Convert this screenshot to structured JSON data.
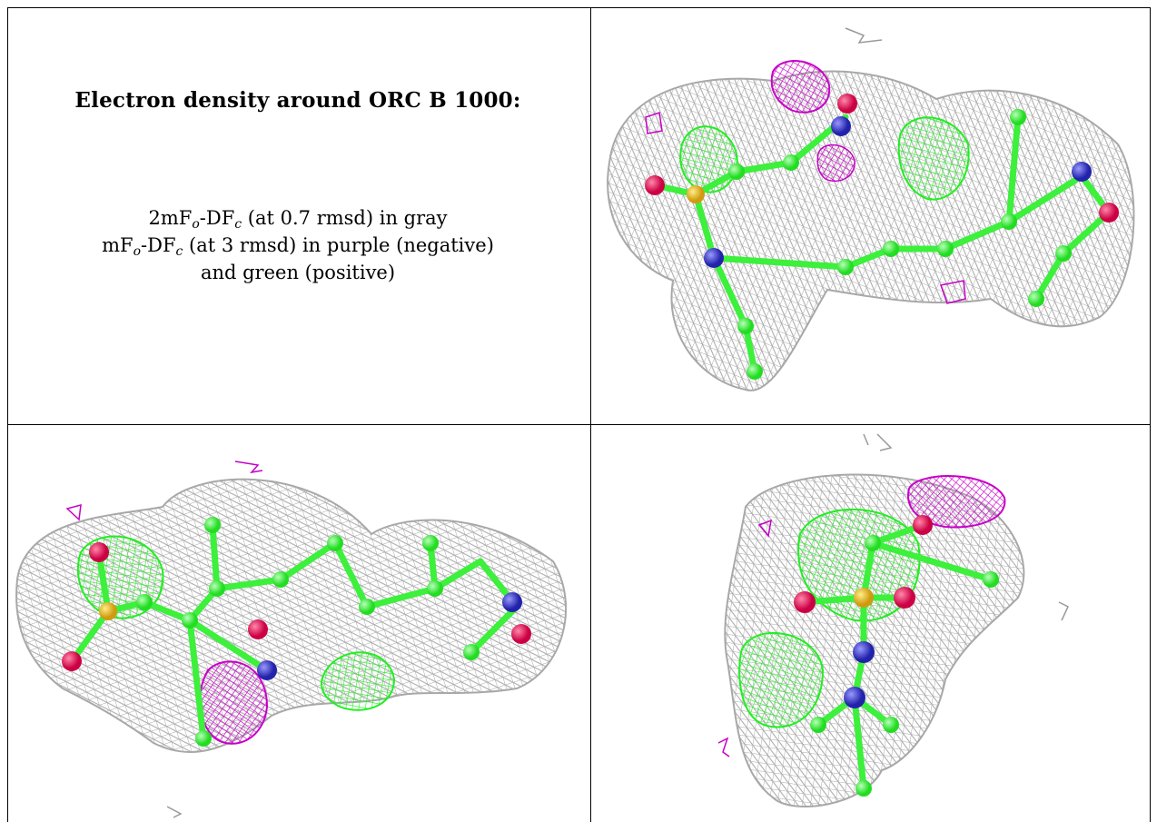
{
  "caption": {
    "title": "Electron density around ORC B 1000:",
    "line1": {
      "pre": "2mF",
      "sub1": "o",
      "mid": "-DF",
      "sub2": "c",
      "post": " (at 0.7 rmsd) in gray"
    },
    "line2": {
      "pre": "mF",
      "sub1": "o",
      "mid": "-DF",
      "sub2": "c",
      "post": " (at 3 rmsd) in purple (negative)"
    },
    "line3": "and green (positive)"
  },
  "colors": {
    "mesh_gray": "#a8a8a8",
    "negative_purple": "#c800c8",
    "positive_green": "#22ee22",
    "carbon": "#3cf03c",
    "nitrogen": "#3c3ce0",
    "oxygen": "#ee2266",
    "sulfur": "#f0c040"
  },
  "panels": [
    {
      "name": "view-top-right",
      "icon": "electron-density-map"
    },
    {
      "name": "view-bottom-left",
      "icon": "electron-density-map"
    },
    {
      "name": "view-bottom-right",
      "icon": "electron-density-map"
    }
  ]
}
